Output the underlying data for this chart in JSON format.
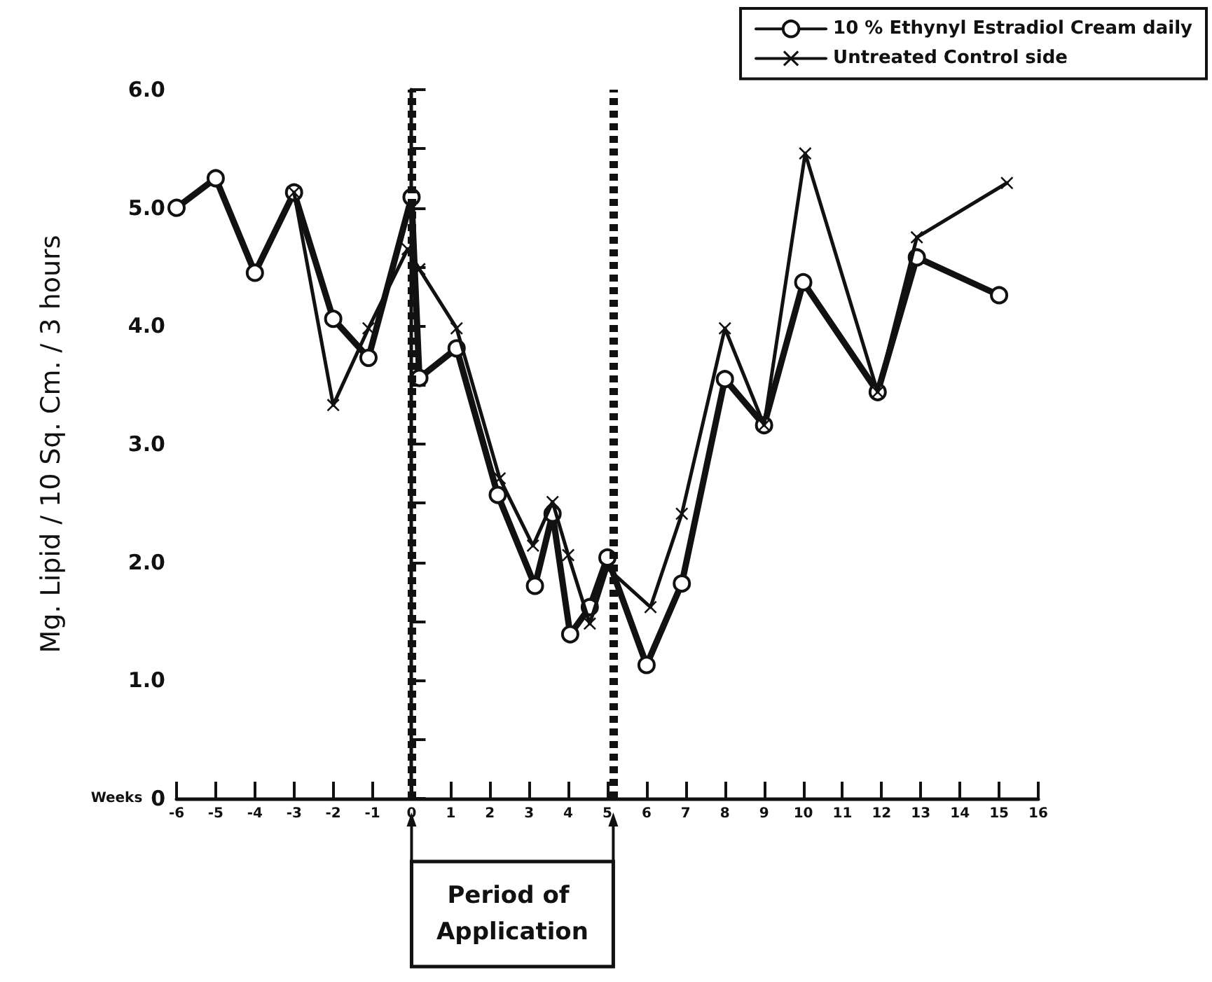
{
  "chart_data": {
    "type": "line",
    "xlabel": "Weeks",
    "ylabel": "Mg. Lipid / 10 Sq. Cm. / 3 hours",
    "series": [
      {
        "name": "10 % Ethynyl Estradiol Cream daily",
        "color": "#111111",
        "marker": "circle",
        "line_style": "solid",
        "x": [
          -6,
          -5,
          -4,
          -3,
          -2,
          -1.1,
          0,
          0.2,
          1.15,
          2.2,
          3.15,
          3.6,
          4.05,
          4.55,
          5.0,
          6.0,
          6.9,
          8.0,
          9.0,
          10.0,
          11.9,
          12.9,
          15.0
        ],
        "values": [
          5.0,
          5.25,
          4.45,
          5.13,
          4.06,
          3.73,
          5.09,
          3.56,
          3.81,
          2.57,
          1.8,
          2.41,
          1.39,
          1.62,
          2.04,
          1.13,
          1.82,
          3.55,
          3.16,
          4.37,
          3.44,
          4.58,
          4.26
        ]
      },
      {
        "name": "Untreated Control side",
        "color": "#111111",
        "marker": "cross",
        "line_style": "solid",
        "x": [
          -3,
          -2,
          -1.1,
          -0.1,
          0.2,
          1.15,
          2.25,
          3.1,
          3.6,
          4.0,
          4.55,
          5.0,
          6.1,
          6.9,
          8.0,
          9.0,
          10.05,
          11.9,
          12.9,
          15.2
        ],
        "values": [
          5.13,
          3.33,
          3.98,
          4.65,
          4.48,
          3.98,
          2.71,
          2.14,
          2.51,
          2.06,
          1.48,
          1.95,
          1.62,
          2.41,
          3.98,
          3.16,
          5.46,
          3.44,
          4.75,
          5.21
        ]
      }
    ],
    "xlim": [
      -6,
      16
    ],
    "xticks": [
      -6,
      -5,
      -4,
      -3,
      -2,
      -1,
      0,
      1,
      2,
      3,
      4,
      5,
      6,
      7,
      8,
      9,
      10,
      11,
      12,
      13,
      14,
      15,
      16
    ],
    "ylim": [
      0,
      6
    ],
    "yticks": [
      0,
      {
        "value": 0.5,
        "label": null
      },
      {
        "value": 1,
        "label": "1.0"
      },
      {
        "value": 1.5,
        "label": null
      },
      {
        "value": 2,
        "label": "2.0"
      },
      {
        "value": 2.5,
        "label": null
      },
      {
        "value": 3,
        "label": "3.0"
      },
      {
        "value": 3.5,
        "label": null
      },
      {
        "value": 4,
        "label": "4.0"
      },
      {
        "value": 4.5,
        "label": null
      },
      {
        "value": 5,
        "label": "5.0"
      },
      {
        "value": 5.5,
        "label": null
      },
      {
        "value": 6,
        "label": "6.0"
      }
    ],
    "ref_lines": [
      {
        "axis": "x",
        "value": 0,
        "color": "#111111",
        "line_style": "dashed"
      },
      {
        "axis": "x",
        "value": 5.15,
        "color": "#111111",
        "line_style": "dashed"
      }
    ],
    "annotations": [
      "Period of Application"
    ],
    "legend": "top right",
    "grid": false
  }
}
